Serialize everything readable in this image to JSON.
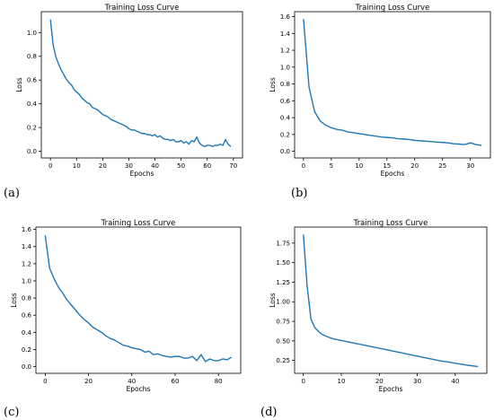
{
  "figure": {
    "labels": [
      "(a)",
      "(b)",
      "(c)",
      "(d)"
    ]
  },
  "chart_data": [
    {
      "type": "line",
      "title": "Training Loss Curve",
      "xlabel": "Epochs",
      "ylabel": "Loss",
      "xlim": [
        0,
        70
      ],
      "ylim": [
        0,
        1.12
      ],
      "xticks": [
        0,
        10,
        20,
        30,
        40,
        50,
        60,
        70
      ],
      "yticks": [
        0.0,
        0.2,
        0.4,
        0.6,
        0.8,
        1.0
      ],
      "ytick_labels": [
        "0.0",
        "0.2",
        "0.4",
        "0.6",
        "0.8",
        "1.0"
      ],
      "color": "#1f77b4",
      "series": [
        {
          "x": [
            0,
            1,
            2,
            3,
            4,
            5,
            6,
            7,
            8,
            9,
            10,
            11,
            12,
            13,
            14,
            15,
            16,
            17,
            18,
            19,
            20,
            21,
            22,
            23,
            24,
            25,
            26,
            27,
            28,
            29,
            30,
            31,
            32,
            33,
            34,
            35,
            36,
            37,
            38,
            39,
            40,
            41,
            42,
            43,
            44,
            45,
            46,
            47,
            48,
            49,
            50,
            51,
            52,
            53,
            54,
            55,
            56,
            57,
            58,
            59,
            60,
            61,
            62,
            63,
            64,
            65,
            66,
            67,
            68,
            69
          ],
          "y": [
            1.11,
            0.9,
            0.8,
            0.74,
            0.69,
            0.65,
            0.61,
            0.58,
            0.56,
            0.52,
            0.5,
            0.48,
            0.45,
            0.43,
            0.41,
            0.4,
            0.37,
            0.36,
            0.35,
            0.33,
            0.31,
            0.3,
            0.29,
            0.27,
            0.26,
            0.25,
            0.24,
            0.23,
            0.22,
            0.21,
            0.19,
            0.18,
            0.18,
            0.17,
            0.16,
            0.15,
            0.15,
            0.14,
            0.14,
            0.13,
            0.14,
            0.12,
            0.13,
            0.11,
            0.1,
            0.1,
            0.09,
            0.1,
            0.08,
            0.08,
            0.09,
            0.07,
            0.08,
            0.06,
            0.09,
            0.08,
            0.12,
            0.07,
            0.05,
            0.04,
            0.05,
            0.05,
            0.04,
            0.05,
            0.05,
            0.06,
            0.05,
            0.1,
            0.06,
            0.04
          ]
        }
      ]
    },
    {
      "type": "line",
      "title": "Training Loss Curve",
      "xlabel": "Epochs",
      "ylabel": "Loss",
      "xlim": [
        0,
        32
      ],
      "ylim": [
        0,
        1.58
      ],
      "xticks": [
        0,
        5,
        10,
        15,
        20,
        25,
        30
      ],
      "yticks": [
        0.0,
        0.2,
        0.4,
        0.6,
        0.8,
        1.0,
        1.2,
        1.4,
        1.6
      ],
      "ytick_labels": [
        "0.0",
        "0.2",
        "0.4",
        "0.6",
        "0.8",
        "1.0",
        "1.2",
        "1.4",
        "1.6"
      ],
      "color": "#1f77b4",
      "series": [
        {
          "x": [
            0,
            1,
            2,
            3,
            4,
            5,
            6,
            7,
            8,
            9,
            10,
            11,
            12,
            13,
            14,
            15,
            16,
            17,
            18,
            19,
            20,
            21,
            22,
            23,
            24,
            25,
            26,
            27,
            28,
            29,
            30,
            31,
            32
          ],
          "y": [
            1.57,
            0.76,
            0.47,
            0.36,
            0.31,
            0.28,
            0.26,
            0.25,
            0.23,
            0.22,
            0.21,
            0.2,
            0.19,
            0.18,
            0.17,
            0.165,
            0.16,
            0.15,
            0.145,
            0.14,
            0.13,
            0.125,
            0.12,
            0.115,
            0.11,
            0.105,
            0.1,
            0.09,
            0.085,
            0.08,
            0.1,
            0.08,
            0.07
          ]
        }
      ]
    },
    {
      "type": "line",
      "title": "Training Loss Curve",
      "xlabel": "Epochs",
      "ylabel": "Loss",
      "xlim": [
        0,
        86
      ],
      "ylim": [
        0,
        1.55
      ],
      "xticks": [
        0,
        20,
        40,
        60,
        80
      ],
      "yticks": [
        0.0,
        0.2,
        0.4,
        0.6,
        0.8,
        1.0,
        1.2,
        1.4,
        1.6
      ],
      "ytick_labels": [
        "0.0",
        "0.2",
        "0.4",
        "0.6",
        "0.8",
        "1.0",
        "1.2",
        "1.4",
        "1.6"
      ],
      "color": "#1f77b4",
      "series": [
        {
          "x": [
            0,
            2,
            4,
            6,
            8,
            10,
            12,
            14,
            16,
            18,
            20,
            22,
            24,
            26,
            28,
            30,
            32,
            34,
            36,
            38,
            40,
            42,
            44,
            46,
            48,
            50,
            52,
            54,
            56,
            58,
            60,
            62,
            64,
            66,
            68,
            70,
            72,
            74,
            76,
            78,
            80,
            82,
            84,
            86
          ],
          "y": [
            1.53,
            1.15,
            1.03,
            0.93,
            0.86,
            0.78,
            0.72,
            0.66,
            0.6,
            0.55,
            0.51,
            0.46,
            0.43,
            0.4,
            0.36,
            0.33,
            0.31,
            0.28,
            0.25,
            0.24,
            0.22,
            0.21,
            0.2,
            0.17,
            0.18,
            0.14,
            0.15,
            0.13,
            0.12,
            0.11,
            0.12,
            0.12,
            0.1,
            0.1,
            0.12,
            0.07,
            0.14,
            0.06,
            0.09,
            0.07,
            0.07,
            0.09,
            0.08,
            0.11
          ]
        }
      ]
    },
    {
      "type": "line",
      "title": "Training Loss Curve",
      "xlabel": "Epochs",
      "ylabel": "Loss",
      "xlim": [
        0,
        46
      ],
      "ylim": [
        0.17,
        1.87
      ],
      "xticks": [
        0,
        10,
        20,
        30,
        40
      ],
      "yticks": [
        0.25,
        0.5,
        0.75,
        1.0,
        1.25,
        1.5,
        1.75
      ],
      "ytick_labels": [
        "0.25",
        "0.50",
        "0.75",
        "1.00",
        "1.25",
        "1.50",
        "1.75"
      ],
      "color": "#1f77b4",
      "series": [
        {
          "x": [
            0,
            1,
            2,
            3,
            4,
            5,
            6,
            7,
            8,
            9,
            10,
            11,
            12,
            13,
            14,
            15,
            16,
            17,
            18,
            19,
            20,
            21,
            22,
            23,
            24,
            25,
            26,
            27,
            28,
            29,
            30,
            31,
            32,
            33,
            34,
            35,
            36,
            37,
            38,
            39,
            40,
            41,
            42,
            43,
            44,
            45,
            46
          ],
          "y": [
            1.86,
            1.2,
            0.78,
            0.67,
            0.62,
            0.58,
            0.56,
            0.54,
            0.525,
            0.515,
            0.505,
            0.495,
            0.485,
            0.475,
            0.465,
            0.455,
            0.445,
            0.435,
            0.425,
            0.415,
            0.405,
            0.395,
            0.385,
            0.375,
            0.365,
            0.355,
            0.345,
            0.335,
            0.325,
            0.315,
            0.305,
            0.295,
            0.285,
            0.275,
            0.265,
            0.255,
            0.245,
            0.238,
            0.23,
            0.222,
            0.214,
            0.206,
            0.198,
            0.19,
            0.184,
            0.178,
            0.172
          ]
        }
      ]
    }
  ]
}
